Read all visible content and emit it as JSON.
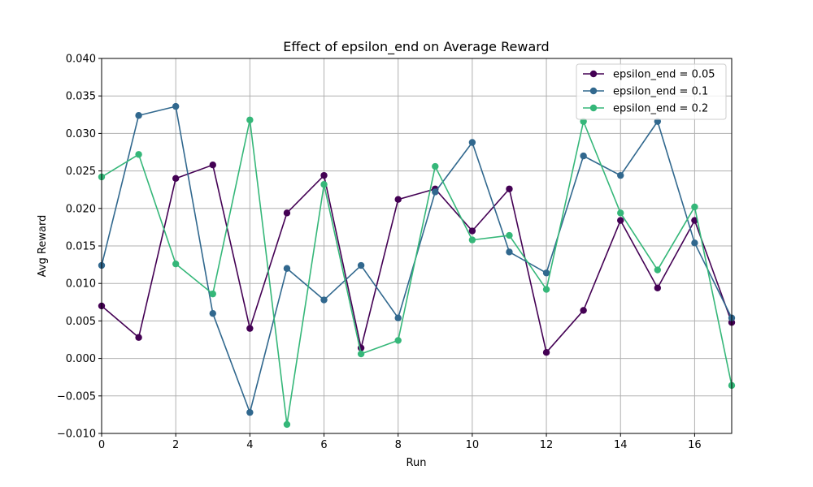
{
  "chart_data": {
    "type": "line",
    "title": "Effect of epsilon_end on Average Reward",
    "xlabel": "Run",
    "ylabel": "Avg Reward",
    "xlim": [
      0,
      17
    ],
    "ylim": [
      -0.01,
      0.04
    ],
    "xticks": [
      "0",
      "2",
      "4",
      "6",
      "8",
      "10",
      "12",
      "14",
      "16"
    ],
    "xtick_values": [
      0,
      2,
      4,
      6,
      8,
      10,
      12,
      14,
      16
    ],
    "yticks": [
      "−0.010",
      "−0.005",
      "0.000",
      "0.005",
      "0.010",
      "0.015",
      "0.020",
      "0.025",
      "0.030",
      "0.035",
      "0.040"
    ],
    "ytick_values": [
      -0.01,
      -0.005,
      0,
      0.005,
      0.01,
      0.015,
      0.02,
      0.025,
      0.03,
      0.035,
      0.04
    ],
    "grid": true,
    "legend_position": "top-right",
    "x": [
      0,
      1,
      2,
      3,
      4,
      5,
      6,
      7,
      8,
      9,
      10,
      11,
      12,
      13,
      14,
      15,
      16,
      17
    ],
    "series": [
      {
        "name": "epsilon_end = 0.05",
        "color": "#440154",
        "values": [
          0.007,
          0.0028,
          0.024,
          0.0258,
          0.004,
          0.0194,
          0.0244,
          0.0014,
          0.0212,
          0.0226,
          0.017,
          0.0226,
          0.0008,
          0.0064,
          0.0184,
          0.0094,
          0.0184,
          0.0048
        ]
      },
      {
        "name": "epsilon_end = 0.1",
        "color": "#31688e",
        "values": [
          0.0124,
          0.0324,
          0.0336,
          0.006,
          -0.0072,
          0.012,
          0.0078,
          0.0124,
          0.0054,
          0.0222,
          0.0288,
          0.0142,
          0.0114,
          0.027,
          0.0244,
          0.0316,
          0.0154,
          0.0054
        ]
      },
      {
        "name": "epsilon_end = 0.2",
        "color": "#35b779",
        "values": [
          0.0242,
          0.0272,
          0.0126,
          0.0086,
          0.0318,
          -0.0088,
          0.0232,
          0.0006,
          0.0024,
          0.0256,
          0.0158,
          0.0164,
          0.0092,
          0.0316,
          0.0194,
          0.0118,
          0.0202,
          -0.0036
        ]
      }
    ]
  }
}
